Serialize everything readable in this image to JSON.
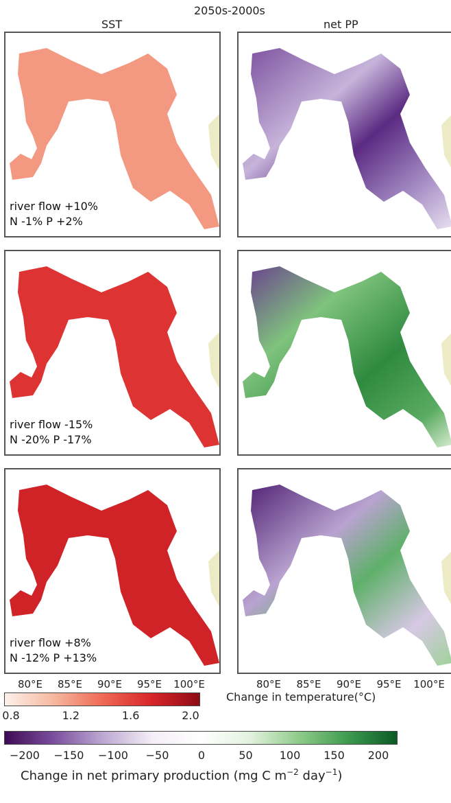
{
  "figure": {
    "title": "2050s-2000s",
    "column_titles": [
      "SST",
      "net PP"
    ],
    "rows": [
      {
        "line1": "river flow +10%",
        "line2": "N -1% P +2%",
        "sst_level": 0.35
      },
      {
        "line1": "river flow -15%",
        "line2": "N -20% P -17%",
        "sst_level": 0.7
      },
      {
        "line1": "river flow +8%",
        "line2": "N -12% P +13%",
        "sst_level": 0.78
      }
    ],
    "lon_ticks": [
      "80°E",
      "85°E",
      "90°E",
      "95°E",
      "100°E"
    ]
  },
  "colorbars": {
    "temperature": {
      "label": "Change in temperature(°C)",
      "ticks": [
        "0.8",
        "1.2",
        "1.6",
        "2.0"
      ],
      "range": [
        0.8,
        2.0
      ],
      "colors": [
        "#fdf1ea",
        "#f6b8a0",
        "#ef6a55",
        "#d9262a",
        "#8e0b14"
      ]
    },
    "pp": {
      "label_main": "Change in net primary production (mg C m",
      "label_exp1": "−2",
      "label_mid": " day",
      "label_exp2": "−1",
      "label_end": ")",
      "ticks": [
        "−200",
        "−150",
        "−100",
        "−50",
        "0",
        "50",
        "100",
        "150",
        "200"
      ],
      "range": [
        -225,
        225
      ],
      "colors": [
        "#3f0a54",
        "#7b4f9e",
        "#bca8d2",
        "#f4eef6",
        "#ffffff",
        "#e3f2de",
        "#8fcb8a",
        "#3d9b4f",
        "#0b5a26"
      ]
    }
  },
  "colors": {
    "land": "#ecebc6",
    "ocean_blank": "#ffffff",
    "purple": "#5b2a82",
    "green": "#2f8a3f"
  }
}
